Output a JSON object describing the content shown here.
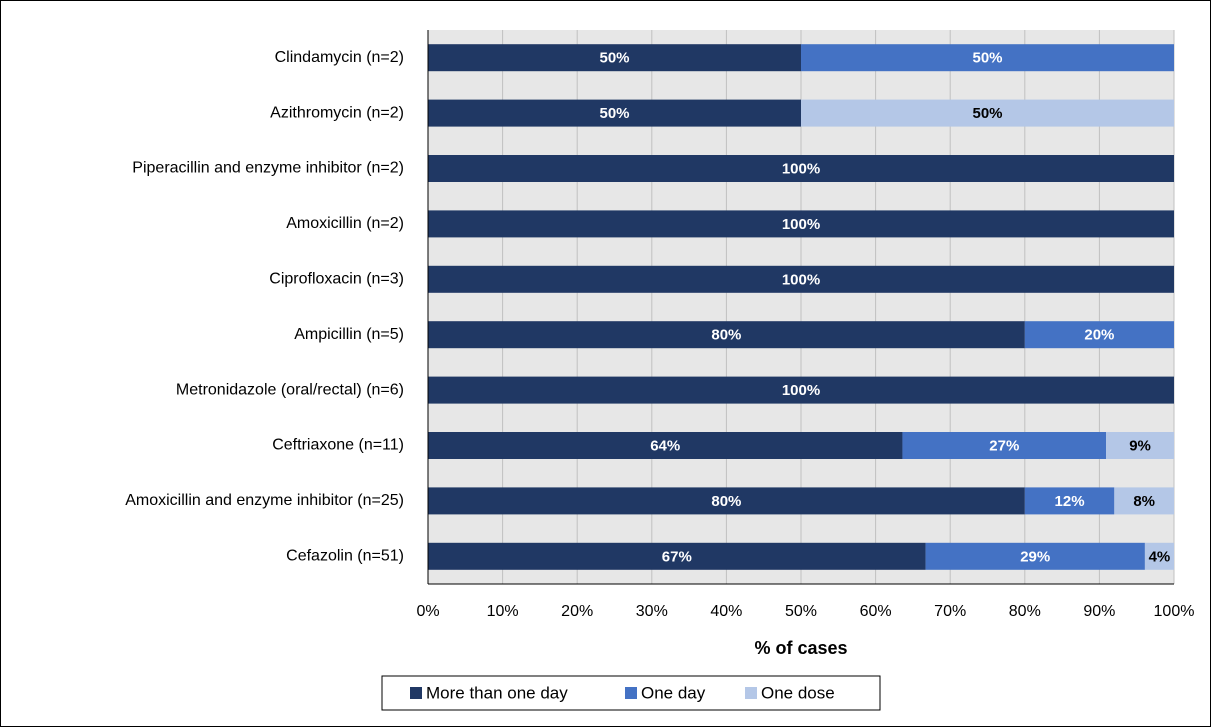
{
  "chart_data": {
    "type": "stacked_barh",
    "xlabel": "% of cases",
    "categories": [
      "Clindamycin (n=2)",
      "Azithromycin (n=2)",
      "Piperacillin and enzyme inhibitor (n=2)",
      "Amoxicillin (n=2)",
      "Ciprofloxacin (n=3)",
      "Ampicillin (n=5)",
      "Metronidazole (oral/rectal) (n=6)",
      "Ceftriaxone (n=11)",
      "Amoxicillin and enzyme inhibitor (n=25)",
      "Cefazolin (n=51)"
    ],
    "series": [
      {
        "name": "More than one day",
        "color": "#203864",
        "label_color": "#ffffff",
        "values": [
          50,
          50,
          100,
          100,
          100,
          80,
          100,
          63.6,
          80,
          66.7
        ],
        "value_labels": [
          "50%",
          "50%",
          "100%",
          "100%",
          "100%",
          "80%",
          "100%",
          "64%",
          "80%",
          "67%"
        ]
      },
      {
        "name": "One day",
        "color": "#4472c4",
        "label_color": "#ffffff",
        "values": [
          50,
          null,
          null,
          null,
          null,
          20,
          null,
          27.3,
          12,
          29.4
        ],
        "value_labels": [
          "50%",
          null,
          null,
          null,
          null,
          "20%",
          null,
          "27%",
          "12%",
          "29%"
        ]
      },
      {
        "name": "One dose",
        "color": "#b4c7e7",
        "label_color": "#000000",
        "values": [
          null,
          50,
          null,
          null,
          null,
          null,
          null,
          9.1,
          8,
          3.9
        ],
        "value_labels": [
          null,
          "50%",
          null,
          null,
          null,
          null,
          null,
          "9%",
          "8%",
          "4%"
        ]
      }
    ],
    "xlim": [
      0,
      100
    ],
    "xticks": [
      {
        "value": 0,
        "label": "0%"
      },
      {
        "value": 10,
        "label": "10%"
      },
      {
        "value": 20,
        "label": "20%"
      },
      {
        "value": 30,
        "label": "30%"
      },
      {
        "value": 40,
        "label": "40%"
      },
      {
        "value": 50,
        "label": "50%"
      },
      {
        "value": 60,
        "label": "60%"
      },
      {
        "value": 70,
        "label": "70%"
      },
      {
        "value": 80,
        "label": "80%"
      },
      {
        "value": 90,
        "label": "90%"
      },
      {
        "value": 100,
        "label": "100%"
      }
    ],
    "grid": true,
    "legend": "bottom"
  }
}
